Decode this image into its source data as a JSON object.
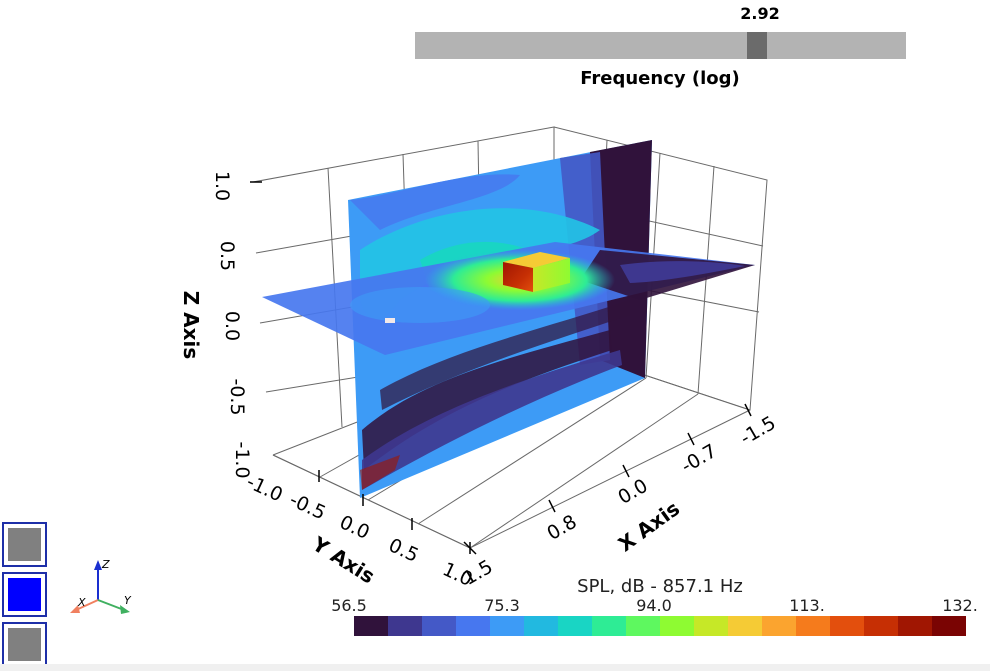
{
  "slider": {
    "value_label": "2.92",
    "title": "Frequency (log)",
    "position_fraction": 0.705
  },
  "axes": {
    "z_title": "Z Axis",
    "y_title": "Y Axis",
    "x_title": "X Axis",
    "z_ticks": [
      "1.0",
      "0.5",
      "0.0",
      "-0.5",
      "-1.0"
    ],
    "y_ticks": [
      "-1.0",
      "-0.5",
      "0.0",
      "0.5",
      "1.0"
    ],
    "x_ticks": [
      "1.5",
      "0.8",
      "0.0",
      "-0.7",
      "-1.5"
    ]
  },
  "orientation_axes": {
    "z": "Z",
    "x": "X",
    "y": "Y"
  },
  "toolbar": {
    "buttons": [
      {
        "name": "toggle-button-1",
        "color": "#808080"
      },
      {
        "name": "toggle-button-2",
        "color": "#0000ff"
      },
      {
        "name": "toggle-button-3",
        "color": "#808080"
      }
    ]
  },
  "colorbar": {
    "title": "SPL, dB - 857.1 Hz",
    "tick_labels": [
      "56.5",
      "75.3",
      "94.0",
      "113.",
      "132."
    ],
    "colors": [
      "#30123b",
      "#3e378f",
      "#4459c7",
      "#4777ef",
      "#3d9bf6",
      "#22b9e0",
      "#19d5c4",
      "#2eec95",
      "#5ef85f",
      "#8efb32",
      "#c6e827",
      "#f5cb35",
      "#fba42f",
      "#f57b1c",
      "#e34f0d",
      "#c62f04",
      "#a01602",
      "#7a0403"
    ]
  },
  "colors": {
    "plane_low": "#30123b",
    "plane_mid": "#3d9bf6",
    "plane_cyan": "#22c4e6",
    "plane_green": "#5ef85f",
    "box_hot": "#a01602",
    "box_yellow": "#f5cb35"
  }
}
